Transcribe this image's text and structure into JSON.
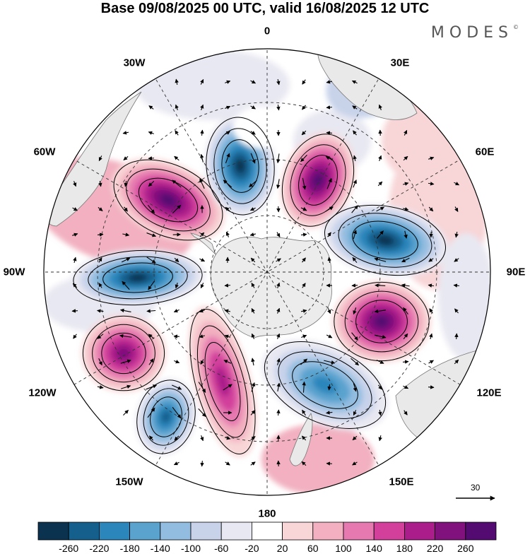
{
  "title": "Base 09/08/2025 00 UTC, valid 16/08/2025 12 UTC",
  "logo": {
    "text": "MODES",
    "mark": "©"
  },
  "projection": "south-polar-stereographic",
  "longitude_labels": {
    "lon_0": "0",
    "lon_30e": "30E",
    "lon_60e": "60E",
    "lon_90e": "90E",
    "lon_120e": "120E",
    "lon_150e": "150E",
    "lon_180": "180",
    "lon_150w": "150W",
    "lon_120w": "120W",
    "lon_90w": "90W",
    "lon_60w": "60W",
    "lon_30w": "30W"
  },
  "reference_vector": {
    "value": "30"
  },
  "colorbar": {
    "labels": [
      "-260",
      "-220",
      "-180",
      "-140",
      "-100",
      "-60",
      "-20",
      "20",
      "60",
      "100",
      "140",
      "180",
      "220",
      "260"
    ],
    "colors": [
      "#0b3350",
      "#155f8c",
      "#2a86bb",
      "#5aa3cf",
      "#93bde0",
      "#c8d3ea",
      "#e8e8f2",
      "#ffffff",
      "#f8d5d7",
      "#f2b0c0",
      "#e67ab0",
      "#d2409c",
      "#ab1d8a",
      "#80117d",
      "#530b72"
    ]
  },
  "anomaly_centers": [
    {
      "id": "high-west-atlantic",
      "sign": "positive",
      "strength": "strong"
    },
    {
      "id": "low-north-of-weddell",
      "sign": "negative",
      "strength": "strong"
    },
    {
      "id": "high-near-0-30e",
      "sign": "positive",
      "strength": "strong"
    },
    {
      "id": "low-60e-90e",
      "sign": "negative",
      "strength": "strong"
    },
    {
      "id": "high-south-of-australia",
      "sign": "positive",
      "strength": "strong"
    },
    {
      "id": "low-south-pacific-90w",
      "sign": "negative",
      "strength": "strong"
    },
    {
      "id": "high-120w",
      "sign": "positive",
      "strength": "strong"
    },
    {
      "id": "low-145w",
      "sign": "negative",
      "strength": "moderate"
    },
    {
      "id": "high-ridge-160w",
      "sign": "positive",
      "strength": "moderate"
    },
    {
      "id": "low-150e-180",
      "sign": "negative",
      "strength": "moderate"
    }
  ]
}
